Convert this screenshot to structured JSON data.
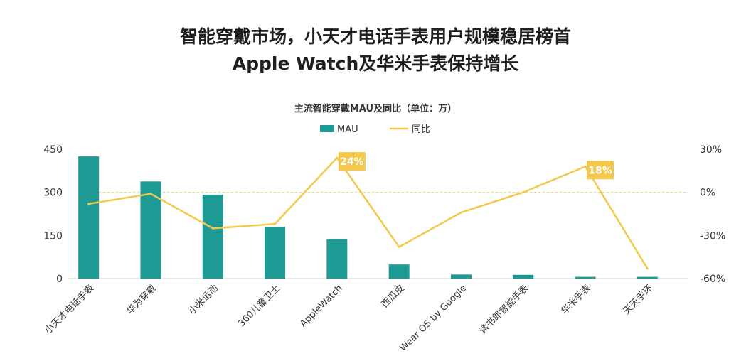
{
  "headline": {
    "line1": "智能穿戴市场，小天才电话手表用户规模稳居榜首",
    "line2": "Apple Watch及华米手表保持增长"
  },
  "chart_data": {
    "type": "bar",
    "title": "主流智能穿戴MAU及同比（单位：万）",
    "categories": [
      "小天才电话手表",
      "华为穿戴",
      "小米运动",
      "360儿童卫士",
      "AppleWatch",
      "西瓜皮",
      "Wear OS by Google",
      "读书郎智能手表",
      "华米手表",
      "天天手环"
    ],
    "series": [
      {
        "name": "MAU",
        "type": "bar",
        "axis": "left",
        "color": "#1e9a94",
        "values": [
          425,
          338,
          292,
          180,
          137,
          49,
          14,
          13,
          6,
          6
        ]
      },
      {
        "name": "同比",
        "type": "line",
        "axis": "right",
        "color": "#f2c94c",
        "unit": "%",
        "values": [
          -8,
          -1,
          -25,
          -22,
          24,
          -38,
          -14,
          0,
          18,
          -53
        ]
      }
    ],
    "left_axis": {
      "ylim": [
        0,
        450
      ],
      "ticks": [
        "0",
        "150",
        "300",
        "450"
      ]
    },
    "right_axis": {
      "ylim": [
        -60,
        30
      ],
      "ticks": [
        "-60%",
        "-30%",
        "0%",
        "30%"
      ]
    },
    "annotations": [
      {
        "category": "AppleWatch",
        "series": "同比",
        "label": "24%"
      },
      {
        "category": "华米手表",
        "series": "同比",
        "label": "18%"
      }
    ],
    "legend": "top-center",
    "reference_line": {
      "axis": "right",
      "value": 0,
      "style": "dashed"
    }
  }
}
